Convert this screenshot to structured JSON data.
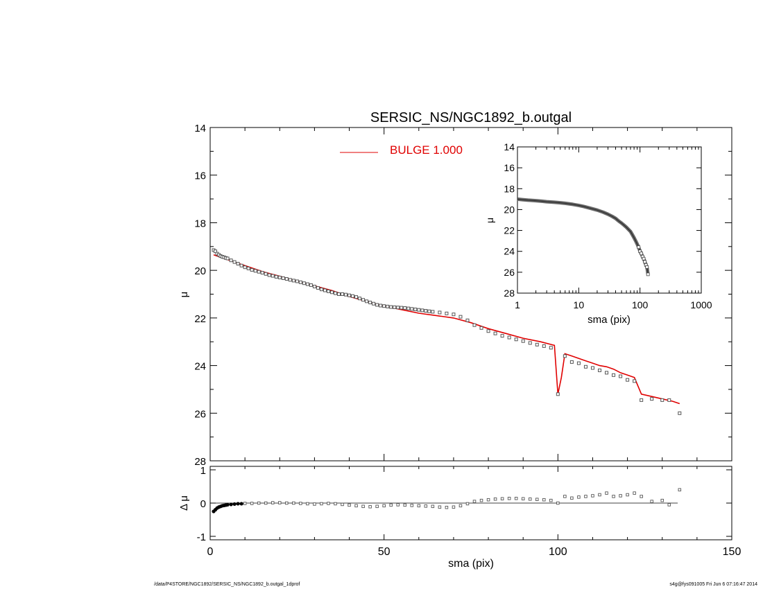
{
  "title": "SERSIC_NS/NGC1892_b.outgal",
  "footer": {
    "path": "/data/P4STORE/NGC1892/SERSIC_NS/NGC1892_b.outgal_1dprof",
    "stamp": "s4g@fys091005  Fri Jun  6 07:16:47 2014"
  },
  "colors": {
    "model": "#e00000",
    "data": "#555555",
    "axes": "#000000"
  },
  "chart_data": [
    {
      "name": "main",
      "type": "scatter",
      "title": "SERSIC_NS/NGC1892_b.outgal",
      "ylabel": "μ",
      "xlim": [
        0,
        150
      ],
      "ylim": [
        28,
        14
      ],
      "y_inverted": true,
      "yticks": [
        14,
        16,
        18,
        20,
        22,
        24,
        26,
        28
      ],
      "legend": {
        "label": "BULGE  1.000",
        "placement": "top-center"
      },
      "data_points": {
        "x": [
          1,
          1.5,
          2,
          2.5,
          3,
          3.5,
          4,
          4.5,
          5,
          6,
          7,
          8,
          9,
          10,
          11,
          12,
          13,
          14,
          15,
          16,
          17,
          18,
          19,
          20,
          21,
          22,
          23,
          24,
          25,
          26,
          27,
          28,
          29,
          30,
          31,
          32,
          33,
          34,
          35,
          36,
          37,
          38,
          39,
          40,
          41,
          42,
          43,
          44,
          45,
          46,
          47,
          48,
          49,
          50,
          51,
          52,
          53,
          54,
          55,
          56,
          57,
          58,
          59,
          60,
          61,
          62,
          63,
          64,
          66,
          68,
          70,
          72,
          74,
          76,
          78,
          80,
          82,
          84,
          86,
          88,
          90,
          92,
          94,
          96,
          98,
          100,
          102,
          104,
          106,
          108,
          110,
          112,
          114,
          116,
          118,
          120,
          122,
          124,
          127,
          130,
          132,
          135
        ],
        "y": [
          19.15,
          19.2,
          19.3,
          19.35,
          19.4,
          19.43,
          19.45,
          19.48,
          19.5,
          19.58,
          19.65,
          19.72,
          19.8,
          19.87,
          19.92,
          19.98,
          20.02,
          20.06,
          20.1,
          20.15,
          20.2,
          20.23,
          20.27,
          20.3,
          20.33,
          20.36,
          20.4,
          20.43,
          20.46,
          20.5,
          20.54,
          20.58,
          20.62,
          20.68,
          20.74,
          20.8,
          20.84,
          20.88,
          20.92,
          20.96,
          21.0,
          21.0,
          21.02,
          21.05,
          21.08,
          21.12,
          21.18,
          21.24,
          21.3,
          21.35,
          21.4,
          21.45,
          21.48,
          21.5,
          21.52,
          21.54,
          21.55,
          21.56,
          21.57,
          21.58,
          21.6,
          21.62,
          21.64,
          21.66,
          21.68,
          21.7,
          21.72,
          21.74,
          21.77,
          21.81,
          21.85,
          21.95,
          22.1,
          22.3,
          22.42,
          22.55,
          22.65,
          22.75,
          22.82,
          22.9,
          22.97,
          23.05,
          23.12,
          23.18,
          23.25,
          25.2,
          23.6,
          23.85,
          23.9,
          24.05,
          24.1,
          24.2,
          24.3,
          24.4,
          24.45,
          24.6,
          24.65,
          25.45,
          25.4,
          25.45,
          25.45,
          26.0
        ]
      },
      "model": {
        "name": "BULGE  1.000",
        "x": [
          1,
          5,
          10,
          15,
          20,
          25,
          30,
          35,
          40,
          45,
          50,
          55,
          60,
          65,
          70,
          75,
          80,
          85,
          90,
          95,
          99,
          100,
          101,
          102,
          104,
          106,
          108,
          110,
          112,
          114,
          116,
          118,
          120,
          122,
          124,
          127,
          130,
          133,
          135
        ],
        "y": [
          19.35,
          19.55,
          19.8,
          20.05,
          20.25,
          20.45,
          20.65,
          20.85,
          21.1,
          21.3,
          21.5,
          21.65,
          21.8,
          21.9,
          22.0,
          22.2,
          22.45,
          22.65,
          22.85,
          23.0,
          23.15,
          25.2,
          24.5,
          23.5,
          23.6,
          23.7,
          23.8,
          23.9,
          24.0,
          24.05,
          24.15,
          24.3,
          24.4,
          24.5,
          25.2,
          25.3,
          25.4,
          25.5,
          25.6
        ]
      }
    },
    {
      "name": "inset",
      "type": "scatter",
      "xlabel": "sma (pix)",
      "ylabel": "μ",
      "x_scale": "log",
      "xlim": [
        1,
        1000
      ],
      "ylim": [
        28,
        14
      ],
      "xticks": [
        1,
        10,
        100,
        1000
      ],
      "xtick_labels": [
        "1",
        "10",
        "100",
        "1000"
      ],
      "yticks": [
        14,
        16,
        18,
        20,
        22,
        24,
        26,
        28
      ],
      "profile": {
        "x": [
          1,
          1.2,
          1.5,
          2,
          2.5,
          3,
          4,
          5,
          6,
          8,
          10,
          12,
          15,
          20,
          25,
          30,
          35,
          40,
          45,
          50,
          55,
          60,
          65,
          70,
          75,
          80,
          85,
          90,
          95,
          100,
          105,
          110,
          115,
          120,
          125,
          130,
          135
        ],
        "y": [
          19.0,
          19.05,
          19.1,
          19.15,
          19.2,
          19.25,
          19.3,
          19.35,
          19.4,
          19.5,
          19.6,
          19.7,
          19.85,
          20.05,
          20.25,
          20.45,
          20.65,
          20.85,
          21.1,
          21.3,
          21.5,
          21.7,
          21.9,
          22.1,
          22.4,
          22.7,
          23.0,
          23.3,
          23.6,
          24.0,
          24.2,
          24.5,
          24.7,
          25.0,
          25.3,
          25.5,
          26.2
        ]
      }
    },
    {
      "name": "residual",
      "type": "scatter",
      "xlabel": "sma (pix)",
      "ylabel": "Δ μ",
      "xlim": [
        0,
        150
      ],
      "ylim": [
        -1,
        1
      ],
      "xticks": [
        0,
        50,
        100,
        150
      ],
      "yticks": [
        -1,
        0,
        1
      ],
      "points": {
        "x": [
          1,
          1.5,
          2,
          2.5,
          3,
          3.5,
          4,
          4.5,
          5,
          6,
          7,
          8,
          9,
          10,
          12,
          14,
          16,
          18,
          20,
          22,
          24,
          26,
          28,
          30,
          32,
          34,
          36,
          38,
          40,
          42,
          44,
          46,
          48,
          50,
          52,
          54,
          56,
          58,
          60,
          62,
          64,
          66,
          68,
          70,
          72,
          74,
          76,
          78,
          80,
          82,
          84,
          86,
          88,
          90,
          92,
          94,
          96,
          98,
          100,
          102,
          104,
          106,
          108,
          110,
          112,
          114,
          116,
          118,
          120,
          122,
          124,
          127,
          130,
          132,
          135
        ],
        "y": [
          -0.25,
          -0.2,
          -0.15,
          -0.12,
          -0.1,
          -0.08,
          -0.07,
          -0.06,
          -0.05,
          -0.04,
          -0.03,
          -0.02,
          -0.02,
          -0.01,
          -0.01,
          0.0,
          0.0,
          0.01,
          0.01,
          0.0,
          0.0,
          -0.01,
          -0.02,
          -0.03,
          -0.02,
          -0.01,
          -0.02,
          -0.04,
          -0.06,
          -0.08,
          -0.1,
          -0.11,
          -0.1,
          -0.08,
          -0.06,
          -0.05,
          -0.06,
          -0.07,
          -0.08,
          -0.09,
          -0.1,
          -0.12,
          -0.13,
          -0.12,
          -0.08,
          -0.02,
          0.05,
          0.08,
          0.1,
          0.12,
          0.13,
          0.14,
          0.14,
          0.13,
          0.12,
          0.11,
          0.1,
          0.08,
          0.0,
          0.2,
          0.15,
          0.18,
          0.2,
          0.22,
          0.25,
          0.3,
          0.2,
          0.22,
          0.25,
          0.3,
          0.2,
          0.05,
          0.08,
          -0.05,
          0.4
        ]
      }
    }
  ]
}
